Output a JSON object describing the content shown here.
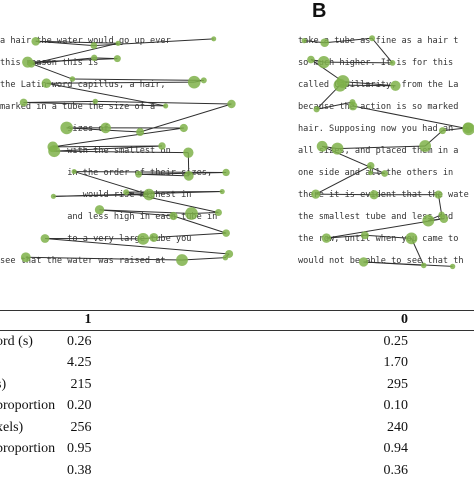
{
  "panel_a": {
    "lines": [
      "a hair the water would go up ever",
      "this reason this is",
      "the Latin word capillus, a hair,",
      "marked in a tube the size of a",
      "             sizes of",
      "             with the smallest on",
      "             in the order of their sizes,",
      "                would rise highest in",
      "             and less high in each tube in",
      "             to a very large tube you",
      "see that the water was raised at"
    ]
  },
  "panel_b": {
    "label": "B",
    "lines": [
      "take a tube as fine as a hair t",
      "so much higher. It is for this",
      "called Capillarity, from the La",
      "because the action is so marked",
      "hair. Supposing now you had an",
      "all sizes, and placed them in a",
      "one side and all the others in",
      "there it is evident that the wate",
      "the smallest tube and less and",
      "the row, until when you came to",
      "would not be able to see that th"
    ]
  },
  "table": {
    "headers": [
      "",
      "1",
      "0"
    ],
    "rows": [
      {
        "label": "ord (s)",
        "v1": "0.26",
        "v2": "0.25"
      },
      {
        "label": "",
        "v1": "4.25",
        "v2": "1.70"
      },
      {
        "label": "s)",
        "v1": "215",
        "v2": "295"
      },
      {
        "label": "proportion",
        "v1": "0.20",
        "v2": "0.10"
      },
      {
        "label": "xels)",
        "v1": "256",
        "v2": "240"
      },
      {
        "label": "proportion",
        "v1": "0.95",
        "v2": "0.94"
      },
      {
        "label": "",
        "v1": "0.38",
        "v2": "0.36"
      }
    ]
  },
  "colors": {
    "fixation": "#7fb24a",
    "saccade": "#2f2f2f"
  }
}
